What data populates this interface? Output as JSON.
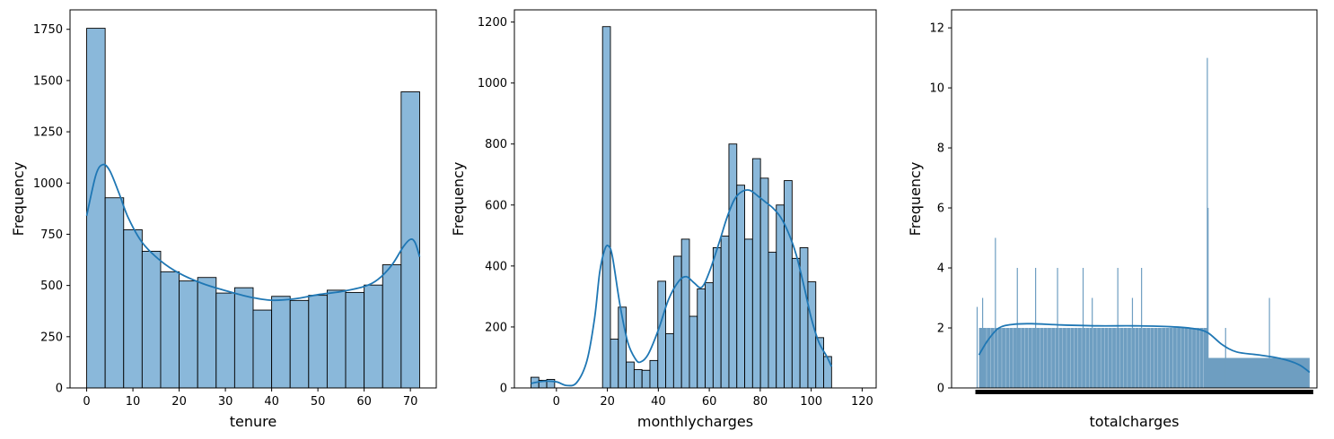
{
  "chart_data": [
    {
      "type": "bar",
      "subtype": "histogram-with-kde",
      "xlabel": "tenure",
      "ylabel": "Frequency",
      "xlim": [
        -3.6,
        75.6
      ],
      "ylim": [
        0,
        1845
      ],
      "xticks": [
        0,
        10,
        20,
        30,
        40,
        50,
        60,
        70
      ],
      "yticks": [
        0,
        250,
        500,
        750,
        1000,
        1250,
        1500,
        1750
      ],
      "bin_width": 4,
      "bins": [
        {
          "x0": 0,
          "x1": 4,
          "value": 1755
        },
        {
          "x0": 4,
          "x1": 8,
          "value": 928
        },
        {
          "x0": 8,
          "x1": 12,
          "value": 772
        },
        {
          "x0": 12,
          "x1": 16,
          "value": 667
        },
        {
          "x0": 16,
          "x1": 20,
          "value": 567
        },
        {
          "x0": 20,
          "x1": 24,
          "value": 522
        },
        {
          "x0": 24,
          "x1": 28,
          "value": 539
        },
        {
          "x0": 28,
          "x1": 32,
          "value": 463
        },
        {
          "x0": 32,
          "x1": 36,
          "value": 489
        },
        {
          "x0": 36,
          "x1": 40,
          "value": 380
        },
        {
          "x0": 40,
          "x1": 44,
          "value": 447
        },
        {
          "x0": 44,
          "x1": 48,
          "value": 427
        },
        {
          "x0": 48,
          "x1": 52,
          "value": 452
        },
        {
          "x0": 52,
          "x1": 56,
          "value": 477
        },
        {
          "x0": 56,
          "x1": 60,
          "value": 466
        },
        {
          "x0": 60,
          "x1": 64,
          "value": 502
        },
        {
          "x0": 64,
          "x1": 68,
          "value": 601
        },
        {
          "x0": 68,
          "x1": 72,
          "value": 1445
        }
      ],
      "kde": [
        [
          0,
          840
        ],
        [
          2,
          1040
        ],
        [
          3.5,
          1090
        ],
        [
          5,
          1060
        ],
        [
          7,
          950
        ],
        [
          9,
          830
        ],
        [
          12,
          710
        ],
        [
          16,
          620
        ],
        [
          20,
          560
        ],
        [
          25,
          510
        ],
        [
          30,
          475
        ],
        [
          35,
          445
        ],
        [
          40,
          428
        ],
        [
          45,
          435
        ],
        [
          50,
          455
        ],
        [
          55,
          470
        ],
        [
          60,
          495
        ],
        [
          63,
          530
        ],
        [
          66,
          600
        ],
        [
          68.5,
          690
        ],
        [
          70,
          725
        ],
        [
          71,
          710
        ],
        [
          72,
          640
        ]
      ]
    },
    {
      "type": "bar",
      "subtype": "histogram-with-kde",
      "xlabel": "monthlycharges",
      "ylabel": "Frequency",
      "xlim": [
        -16.5,
        125.5
      ],
      "ylim": [
        0,
        1240
      ],
      "xticks": [
        0,
        20,
        40,
        60,
        80,
        100,
        120
      ],
      "yticks": [
        0,
        200,
        400,
        600,
        800,
        1000,
        1200
      ],
      "bin_width": 3.1,
      "bins": [
        {
          "x0": -10.0,
          "x1": -6.9,
          "value": 35
        },
        {
          "x0": -6.9,
          "x1": -3.8,
          "value": 25
        },
        {
          "x0": -3.8,
          "x1": -0.7,
          "value": 28
        },
        {
          "x0": 15.0,
          "x1": 18.1,
          "value": 0
        },
        {
          "x0": 18.1,
          "x1": 21.2,
          "value": 1185
        },
        {
          "x0": 21.2,
          "x1": 24.3,
          "value": 160
        },
        {
          "x0": 24.3,
          "x1": 27.4,
          "value": 265
        },
        {
          "x0": 27.4,
          "x1": 30.5,
          "value": 85
        },
        {
          "x0": 30.5,
          "x1": 33.6,
          "value": 60
        },
        {
          "x0": 33.6,
          "x1": 36.7,
          "value": 58
        },
        {
          "x0": 36.7,
          "x1": 39.8,
          "value": 90
        },
        {
          "x0": 39.8,
          "x1": 42.9,
          "value": 350
        },
        {
          "x0": 42.9,
          "x1": 46.0,
          "value": 178
        },
        {
          "x0": 46.0,
          "x1": 49.1,
          "value": 432
        },
        {
          "x0": 49.1,
          "x1": 52.2,
          "value": 488
        },
        {
          "x0": 52.2,
          "x1": 55.3,
          "value": 235
        },
        {
          "x0": 55.3,
          "x1": 58.4,
          "value": 325
        },
        {
          "x0": 58.4,
          "x1": 61.5,
          "value": 345
        },
        {
          "x0": 61.5,
          "x1": 64.6,
          "value": 460
        },
        {
          "x0": 64.6,
          "x1": 67.7,
          "value": 498
        },
        {
          "x0": 67.7,
          "x1": 70.8,
          "value": 800
        },
        {
          "x0": 70.8,
          "x1": 73.9,
          "value": 665
        },
        {
          "x0": 73.9,
          "x1": 77.0,
          "value": 488
        },
        {
          "x0": 77.0,
          "x1": 80.1,
          "value": 752
        },
        {
          "x0": 80.1,
          "x1": 83.2,
          "value": 688
        },
        {
          "x0": 83.2,
          "x1": 86.3,
          "value": 445
        },
        {
          "x0": 86.3,
          "x1": 89.4,
          "value": 600
        },
        {
          "x0": 89.4,
          "x1": 92.5,
          "value": 680
        },
        {
          "x0": 92.5,
          "x1": 95.6,
          "value": 425
        },
        {
          "x0": 95.6,
          "x1": 98.7,
          "value": 460
        },
        {
          "x0": 98.7,
          "x1": 101.8,
          "value": 348
        },
        {
          "x0": 101.8,
          "x1": 104.9,
          "value": 165
        },
        {
          "x0": 104.9,
          "x1": 108.0,
          "value": 103
        }
      ],
      "kde": [
        [
          -10,
          15
        ],
        [
          -5,
          22
        ],
        [
          0,
          20
        ],
        [
          4,
          8
        ],
        [
          8,
          18
        ],
        [
          12,
          90
        ],
        [
          15,
          230
        ],
        [
          17,
          380
        ],
        [
          19,
          455
        ],
        [
          20.5,
          465
        ],
        [
          22,
          430
        ],
        [
          25,
          270
        ],
        [
          28,
          150
        ],
        [
          31,
          95
        ],
        [
          33,
          85
        ],
        [
          36,
          110
        ],
        [
          40,
          190
        ],
        [
          44,
          290
        ],
        [
          48,
          350
        ],
        [
          51,
          365
        ],
        [
          54,
          345
        ],
        [
          57,
          330
        ],
        [
          60,
          380
        ],
        [
          64,
          480
        ],
        [
          67,
          560
        ],
        [
          70,
          620
        ],
        [
          73,
          645
        ],
        [
          76,
          648
        ],
        [
          79,
          630
        ],
        [
          82,
          610
        ],
        [
          85,
          590
        ],
        [
          88,
          560
        ],
        [
          91,
          510
        ],
        [
          94,
          440
        ],
        [
          97,
          340
        ],
        [
          100,
          230
        ],
        [
          103,
          150
        ],
        [
          106,
          105
        ],
        [
          108,
          70
        ]
      ]
    },
    {
      "type": "bar",
      "subtype": "histogram-with-kde",
      "xlabel": "totalcharges",
      "ylabel": "Frequency",
      "xlim": [
        0,
        1
      ],
      "ylim": [
        0,
        12.6
      ],
      "yticks": [
        0,
        2,
        4,
        6,
        8,
        10,
        12
      ],
      "xtick_labels_overlapping": true,
      "main_block": {
        "x0": 0.075,
        "x1": 0.7,
        "value": 2
      },
      "tail_block": {
        "x0": 0.7,
        "x1": 0.98,
        "value": 1
      },
      "spikes": [
        {
          "x": 0.07,
          "value": 2.7
        },
        {
          "x": 0.085,
          "value": 3.0
        },
        {
          "x": 0.12,
          "value": 5.0
        },
        {
          "x": 0.18,
          "value": 4.0
        },
        {
          "x": 0.23,
          "value": 4.0
        },
        {
          "x": 0.29,
          "value": 4.0
        },
        {
          "x": 0.36,
          "value": 4.0
        },
        {
          "x": 0.385,
          "value": 3.0
        },
        {
          "x": 0.455,
          "value": 4.0
        },
        {
          "x": 0.495,
          "value": 3.0
        },
        {
          "x": 0.52,
          "value": 4.0
        },
        {
          "x": 0.7,
          "value": 11.0
        },
        {
          "x": 0.702,
          "value": 6.0
        },
        {
          "x": 0.75,
          "value": 2.0
        },
        {
          "x": 0.87,
          "value": 3.0
        }
      ],
      "kde": [
        [
          0.075,
          1.1
        ],
        [
          0.1,
          1.6
        ],
        [
          0.13,
          2.0
        ],
        [
          0.17,
          2.12
        ],
        [
          0.22,
          2.14
        ],
        [
          0.3,
          2.1
        ],
        [
          0.4,
          2.07
        ],
        [
          0.5,
          2.07
        ],
        [
          0.6,
          2.04
        ],
        [
          0.66,
          1.98
        ],
        [
          0.7,
          1.85
        ],
        [
          0.74,
          1.45
        ],
        [
          0.78,
          1.2
        ],
        [
          0.84,
          1.1
        ],
        [
          0.9,
          0.98
        ],
        [
          0.95,
          0.78
        ],
        [
          0.98,
          0.52
        ]
      ]
    }
  ],
  "colors": {
    "bar_fill": "#8ab8da",
    "bar_fill_dense": "#6e9ec1",
    "bar_edge": "#000000",
    "kde_line": "#1f77b4",
    "axis": "#000000"
  }
}
